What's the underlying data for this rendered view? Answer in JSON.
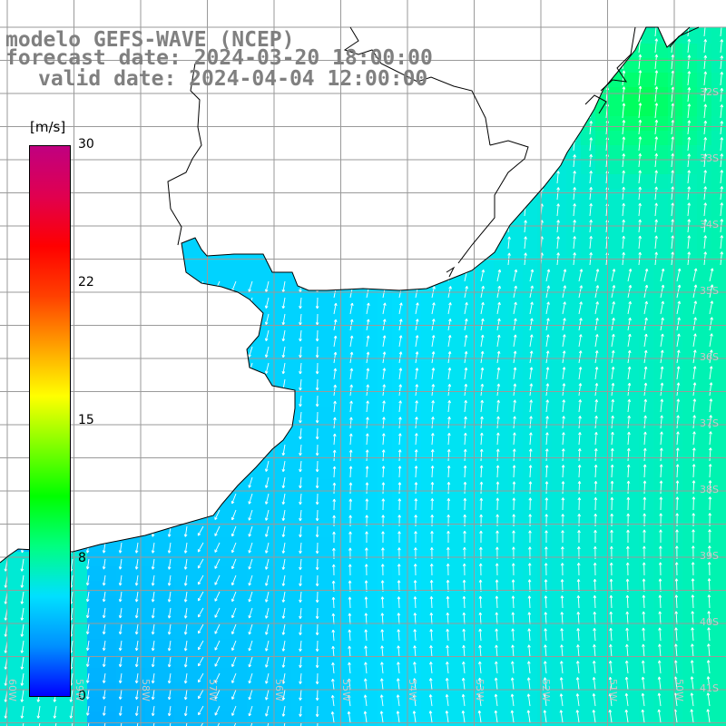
{
  "title": {
    "line1": "modelo GEFS-WAVE (NCEP)",
    "line2": "forecast date: 2024-03-20 18:00:00",
    "line3": "valid date: 2024-04-04 12:00:00"
  },
  "colorbar": {
    "unit": "[m/s]",
    "ticks": [
      {
        "label": "30",
        "value": 30
      },
      {
        "label": "22",
        "value": 22.5
      },
      {
        "label": "15",
        "value": 15
      },
      {
        "label": "8",
        "value": 7.5
      },
      {
        "label": "0",
        "value": 0
      }
    ],
    "min": 0,
    "max": 30,
    "stops": [
      "#0000ff",
      "#0090ff",
      "#00e0ff",
      "#00ff80",
      "#00ff00",
      "#80ff00",
      "#ffff00",
      "#ffa000",
      "#ff4000",
      "#ff0000",
      "#e00050",
      "#c00080"
    ]
  },
  "axes": {
    "lat_labels": [
      "32S",
      "33S",
      "34S",
      "35S",
      "36S",
      "37S",
      "38S",
      "39S",
      "40S",
      "41S"
    ],
    "lon_labels": [
      "60W",
      "59W",
      "58W",
      "57W",
      "56W",
      "55W",
      "54W",
      "53W",
      "52W",
      "51W",
      "50W"
    ]
  },
  "colors": {
    "land": "#ffffff",
    "coast": "#000000",
    "grid": "#9a9a9a",
    "arrow": "#ffffff",
    "title_text": "#808080"
  },
  "chart_data": {
    "type": "heatmap",
    "variable": "wind speed",
    "unit": "m/s",
    "range": [
      0,
      30
    ],
    "regions": [
      {
        "area": "north-east coast (near 32-33S)",
        "value": 10
      },
      {
        "area": "east offshore",
        "value": 7.5
      },
      {
        "area": "central shelf",
        "value": 5
      },
      {
        "area": "south-west coast",
        "value": 2
      }
    ]
  }
}
